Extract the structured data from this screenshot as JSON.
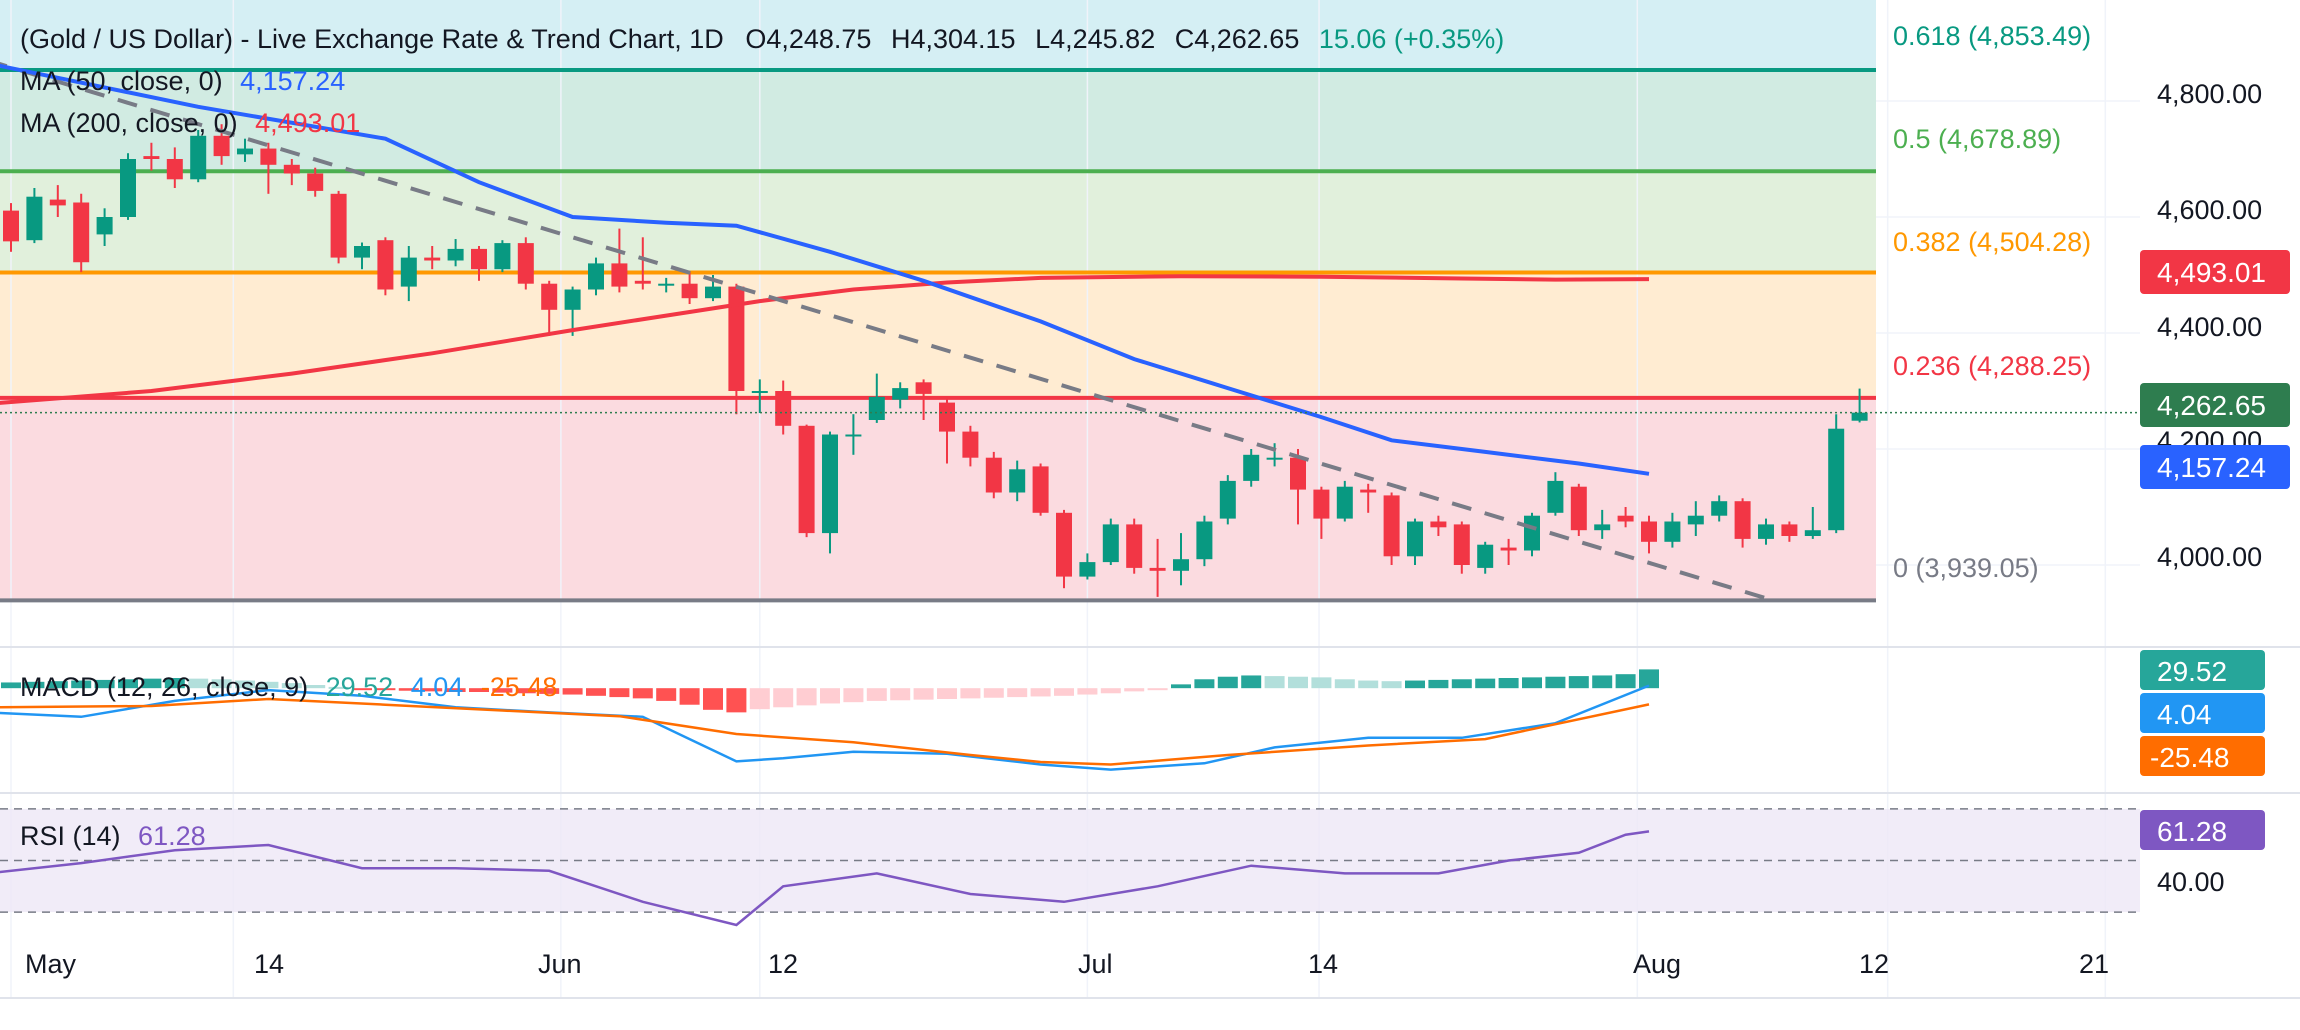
{
  "header": {
    "symbol_title": "(Gold / US Dollar) - Live Exchange Rate & Trend Chart, 1D",
    "open_label": "O",
    "open": "4,248.75",
    "high_label": "H",
    "high": "4,304.15",
    "low_label": "L",
    "low": "4,245.82",
    "close_label": "C",
    "close": "4,262.65",
    "change": "15.06 (+0.35%)"
  },
  "indicators": {
    "ma50_label": "MA (50, close, 0)",
    "ma50_value": "4,157.24",
    "ma200_label": "MA (200, close, 0)",
    "ma200_value": "4,493.01",
    "macd_label": "MACD (12, 26, close, 9)",
    "macd_hist": "29.52",
    "macd_line": "4.04",
    "macd_signal": "-25.48",
    "rsi_label": "RSI (14)",
    "rsi_value": "61.28"
  },
  "fib_labels": [
    {
      "text": "0.618 (4,853.49)",
      "color": "#089981"
    },
    {
      "text": "0.5 (4,678.89)",
      "color": "#4caf50"
    },
    {
      "text": "0.382 (4,504.28)",
      "color": "#ff9800"
    },
    {
      "text": "0.236 (4,288.25)",
      "color": "#f23645"
    },
    {
      "text": "0 (3,939.05)",
      "color": "#787b86"
    }
  ],
  "price_axis": [
    "4,800.00",
    "4,600.00",
    "4,400.00",
    "4,200.00",
    "4,000.00"
  ],
  "price_badges": {
    "ma200": "4,493.01",
    "last": "4,262.65",
    "ma50": "4,157.24"
  },
  "macd_axis_badges": {
    "hist": "29.52",
    "macd": "4.04",
    "signal": "-25.48"
  },
  "rsi_axis": {
    "badge": "61.28",
    "tick": "40.00"
  },
  "time_axis": [
    "May",
    "14",
    "Jun",
    "12",
    "Jul",
    "14",
    "Aug",
    "12",
    "21"
  ],
  "colors": {
    "up": "#089981",
    "down": "#f23645",
    "ma50": "#2962ff",
    "ma200": "#f23645",
    "macd_line": "#2196f3",
    "signal": "#ff6d00",
    "rsi": "#7e57c2",
    "trend": "#787b86"
  },
  "chart_data": {
    "type": "candlestick",
    "interval": "1D",
    "y_range": [
      3939.05,
      4853.49
    ],
    "fib_levels": [
      {
        "ratio": 0.618,
        "price": 4853.49
      },
      {
        "ratio": 0.5,
        "price": 4678.89
      },
      {
        "ratio": 0.382,
        "price": 4504.28
      },
      {
        "ratio": 0.236,
        "price": 4288.25
      },
      {
        "ratio": 0,
        "price": 3939.05
      }
    ],
    "candles": [
      {
        "o": 4611,
        "c": 4558,
        "h": 4624,
        "l": 4540
      },
      {
        "o": 4560,
        "c": 4635,
        "h": 4650,
        "l": 4555
      },
      {
        "o": 4630,
        "c": 4620,
        "h": 4655,
        "l": 4600
      },
      {
        "o": 4625,
        "c": 4522,
        "h": 4640,
        "l": 4505
      },
      {
        "o": 4570,
        "c": 4600,
        "h": 4615,
        "l": 4550
      },
      {
        "o": 4600,
        "c": 4700,
        "h": 4710,
        "l": 4595
      },
      {
        "o": 4705,
        "c": 4700,
        "h": 4728,
        "l": 4680
      },
      {
        "o": 4700,
        "c": 4665,
        "h": 4720,
        "l": 4650
      },
      {
        "o": 4665,
        "c": 4740,
        "h": 4750,
        "l": 4660
      },
      {
        "o": 4740,
        "c": 4705,
        "h": 4760,
        "l": 4690
      },
      {
        "o": 4708,
        "c": 4718,
        "h": 4735,
        "l": 4695
      },
      {
        "o": 4718,
        "c": 4690,
        "h": 4728,
        "l": 4640
      },
      {
        "o": 4690,
        "c": 4675,
        "h": 4700,
        "l": 4655
      },
      {
        "o": 4675,
        "c": 4645,
        "h": 4685,
        "l": 4635
      },
      {
        "o": 4640,
        "c": 4530,
        "h": 4645,
        "l": 4520
      },
      {
        "o": 4530,
        "c": 4550,
        "h": 4556,
        "l": 4510
      },
      {
        "o": 4560,
        "c": 4475,
        "h": 4565,
        "l": 4465
      },
      {
        "o": 4480,
        "c": 4530,
        "h": 4550,
        "l": 4455
      },
      {
        "o": 4530,
        "c": 4525,
        "h": 4550,
        "l": 4510
      },
      {
        "o": 4525,
        "c": 4545,
        "h": 4562,
        "l": 4515
      },
      {
        "o": 4545,
        "c": 4510,
        "h": 4550,
        "l": 4490
      },
      {
        "o": 4510,
        "c": 4555,
        "h": 4560,
        "l": 4505
      },
      {
        "o": 4555,
        "c": 4485,
        "h": 4565,
        "l": 4475
      },
      {
        "o": 4485,
        "c": 4440,
        "h": 4490,
        "l": 4395
      },
      {
        "o": 4440,
        "c": 4475,
        "h": 4480,
        "l": 4395
      },
      {
        "o": 4475,
        "c": 4520,
        "h": 4530,
        "l": 4465
      },
      {
        "o": 4520,
        "c": 4480,
        "h": 4580,
        "l": 4470
      },
      {
        "o": 4490,
        "c": 4485,
        "h": 4565,
        "l": 4475
      },
      {
        "o": 4485,
        "c": 4485,
        "h": 4495,
        "l": 4470
      },
      {
        "o": 4485,
        "c": 4460,
        "h": 4505,
        "l": 4450
      },
      {
        "o": 4460,
        "c": 4480,
        "h": 4500,
        "l": 4455
      },
      {
        "o": 4480,
        "c": 4300,
        "h": 4485,
        "l": 4260
      },
      {
        "o": 4300,
        "c": 4300,
        "h": 4320,
        "l": 4262
      },
      {
        "o": 4300,
        "c": 4240,
        "h": 4318,
        "l": 4225
      },
      {
        "o": 4240,
        "c": 4055,
        "h": 4242,
        "l": 4048
      },
      {
        "o": 4055,
        "c": 4225,
        "h": 4230,
        "l": 4020
      },
      {
        "o": 4225,
        "c": 4225,
        "h": 4260,
        "l": 4190
      },
      {
        "o": 4250,
        "c": 4290,
        "h": 4330,
        "l": 4245
      },
      {
        "o": 4285,
        "c": 4305,
        "h": 4315,
        "l": 4270
      },
      {
        "o": 4315,
        "c": 4295,
        "h": 4320,
        "l": 4250
      },
      {
        "o": 4280,
        "c": 4230,
        "h": 4290,
        "l": 4175
      },
      {
        "o": 4230,
        "c": 4185,
        "h": 4240,
        "l": 4170
      },
      {
        "o": 4185,
        "c": 4125,
        "h": 4195,
        "l": 4115
      },
      {
        "o": 4125,
        "c": 4165,
        "h": 4180,
        "l": 4110
      },
      {
        "o": 4170,
        "c": 4090,
        "h": 4175,
        "l": 4085
      },
      {
        "o": 4090,
        "c": 3980,
        "h": 4095,
        "l": 3960
      },
      {
        "o": 3980,
        "c": 4005,
        "h": 4020,
        "l": 3975
      },
      {
        "o": 4005,
        "c": 4070,
        "h": 4080,
        "l": 4000
      },
      {
        "o": 4070,
        "c": 3995,
        "h": 4080,
        "l": 3985
      },
      {
        "o": 3995,
        "c": 3990,
        "h": 4045,
        "l": 3945
      },
      {
        "o": 3990,
        "c": 4010,
        "h": 4055,
        "l": 3965
      },
      {
        "o": 4010,
        "c": 4075,
        "h": 4085,
        "l": 3998
      },
      {
        "o": 4080,
        "c": 4145,
        "h": 4155,
        "l": 4070
      },
      {
        "o": 4145,
        "c": 4190,
        "h": 4200,
        "l": 4135
      },
      {
        "o": 4185,
        "c": 4185,
        "h": 4210,
        "l": 4170
      },
      {
        "o": 4185,
        "c": 4130,
        "h": 4200,
        "l": 4070
      },
      {
        "o": 4130,
        "c": 4080,
        "h": 4135,
        "l": 4045
      },
      {
        "o": 4080,
        "c": 4135,
        "h": 4145,
        "l": 4075
      },
      {
        "o": 4130,
        "c": 4125,
        "h": 4140,
        "l": 4090
      },
      {
        "o": 4120,
        "c": 4015,
        "h": 4125,
        "l": 4000
      },
      {
        "o": 4015,
        "c": 4075,
        "h": 4080,
        "l": 4000
      },
      {
        "o": 4075,
        "c": 4065,
        "h": 4085,
        "l": 4050
      },
      {
        "o": 4070,
        "c": 4000,
        "h": 4075,
        "l": 3985
      },
      {
        "o": 3995,
        "c": 4035,
        "h": 4040,
        "l": 3985
      },
      {
        "o": 4030,
        "c": 4025,
        "h": 4045,
        "l": 4000
      },
      {
        "o": 4025,
        "c": 4085,
        "h": 4090,
        "l": 4015
      },
      {
        "o": 4090,
        "c": 4145,
        "h": 4160,
        "l": 4085
      },
      {
        "o": 4135,
        "c": 4060,
        "h": 4140,
        "l": 4050
      },
      {
        "o": 4060,
        "c": 4070,
        "h": 4095,
        "l": 4045
      },
      {
        "o": 4085,
        "c": 4075,
        "h": 4100,
        "l": 4065
      },
      {
        "o": 4075,
        "c": 4040,
        "h": 4085,
        "l": 4020
      },
      {
        "o": 4040,
        "c": 4075,
        "h": 4090,
        "l": 4030
      },
      {
        "o": 4070,
        "c": 4085,
        "h": 4110,
        "l": 4050
      },
      {
        "o": 4085,
        "c": 4110,
        "h": 4120,
        "l": 4075
      },
      {
        "o": 4110,
        "c": 4045,
        "h": 4115,
        "l": 4030
      },
      {
        "o": 4045,
        "c": 4070,
        "h": 4080,
        "l": 4035
      },
      {
        "o": 4070,
        "c": 4050,
        "h": 4075,
        "l": 4040
      },
      {
        "o": 4050,
        "c": 4060,
        "h": 4100,
        "l": 4045
      },
      {
        "o": 4060,
        "c": 4235,
        "h": 4260,
        "l": 4055
      },
      {
        "o": 4248.75,
        "c": 4262.65,
        "h": 4304.15,
        "l": 4245.82
      }
    ],
    "ma50": [
      [
        -1,
        4865
      ],
      [
        8,
        4790
      ],
      [
        16,
        4735
      ],
      [
        20,
        4660
      ],
      [
        24,
        4600
      ],
      [
        28,
        4590
      ],
      [
        31,
        4585
      ],
      [
        35,
        4540
      ],
      [
        39,
        4490
      ],
      [
        44,
        4420
      ],
      [
        48,
        4355
      ],
      [
        52,
        4305
      ],
      [
        56,
        4255
      ],
      [
        59,
        4215
      ],
      [
        63,
        4195
      ],
      [
        67,
        4175
      ],
      [
        70,
        4157.24
      ]
    ],
    "ma200": [
      [
        -1,
        4278
      ],
      [
        6,
        4300
      ],
      [
        12,
        4330
      ],
      [
        18,
        4365
      ],
      [
        24,
        4405
      ],
      [
        28,
        4430
      ],
      [
        32,
        4455
      ],
      [
        36,
        4475
      ],
      [
        40,
        4487
      ],
      [
        44,
        4495
      ],
      [
        50,
        4498
      ],
      [
        56,
        4497
      ],
      [
        62,
        4494
      ],
      [
        66,
        4492
      ],
      [
        70,
        4493.01
      ]
    ],
    "trendline": {
      "start": [
        -1,
        4870
      ],
      "end": [
        75.3,
        3939.05
      ]
    },
    "macd": {
      "y_range": [
        -160,
        60
      ],
      "hist": [
        9,
        10,
        11,
        12,
        13,
        14,
        15,
        16,
        15,
        14,
        12,
        10,
        8,
        5,
        2,
        -1,
        -3,
        -4,
        -5,
        -6,
        -6,
        -7,
        -8,
        -9,
        -10,
        -12,
        -14,
        -16,
        -20,
        -26,
        -34,
        -38,
        -33,
        -30,
        -27,
        -24,
        -22,
        -20,
        -19,
        -18,
        -17,
        -16,
        -15,
        -14,
        -13,
        -12,
        -10,
        -8,
        -5,
        -2,
        6,
        14,
        18,
        20,
        19,
        18,
        17,
        14,
        12,
        11,
        12,
        13,
        14,
        15,
        16,
        17,
        18,
        19,
        20,
        22,
        29.52
      ],
      "macd_line": [
        [
          -1,
          -38
        ],
        [
          3,
          -45
        ],
        [
          7,
          -20
        ],
        [
          11,
          -3
        ],
        [
          15,
          -12
        ],
        [
          19,
          -30
        ],
        [
          23,
          -38
        ],
        [
          27,
          -45
        ],
        [
          29,
          -80
        ],
        [
          31,
          -115
        ],
        [
          33,
          -110
        ],
        [
          36,
          -100
        ],
        [
          40,
          -103
        ],
        [
          44,
          -120
        ],
        [
          47,
          -128
        ],
        [
          51,
          -118
        ],
        [
          54,
          -93
        ],
        [
          58,
          -78
        ],
        [
          62,
          -78
        ],
        [
          66,
          -55
        ],
        [
          70,
          4.04
        ]
      ],
      "signal_line": [
        [
          -1,
          -30
        ],
        [
          6,
          -28
        ],
        [
          11,
          -17
        ],
        [
          16,
          -26
        ],
        [
          21,
          -35
        ],
        [
          26,
          -44
        ],
        [
          31,
          -72
        ],
        [
          36,
          -85
        ],
        [
          41,
          -105
        ],
        [
          44,
          -116
        ],
        [
          47,
          -120
        ],
        [
          52,
          -105
        ],
        [
          58,
          -90
        ],
        [
          63,
          -80
        ],
        [
          70,
          -25.48
        ]
      ]
    },
    "rsi": {
      "y_range": [
        25,
        75
      ],
      "bands": [
        70,
        50,
        30
      ],
      "values": [
        [
          -1,
          45
        ],
        [
          3,
          49
        ],
        [
          7,
          54
        ],
        [
          11,
          56
        ],
        [
          15,
          47
        ],
        [
          19,
          47
        ],
        [
          23,
          46
        ],
        [
          27,
          34
        ],
        [
          31,
          25
        ],
        [
          33,
          40
        ],
        [
          37,
          45
        ],
        [
          41,
          37
        ],
        [
          45,
          34
        ],
        [
          49,
          40
        ],
        [
          53,
          48
        ],
        [
          57,
          45
        ],
        [
          61,
          45
        ],
        [
          64,
          50
        ],
        [
          67,
          53
        ],
        [
          69,
          60
        ],
        [
          70,
          61.28
        ]
      ]
    }
  }
}
